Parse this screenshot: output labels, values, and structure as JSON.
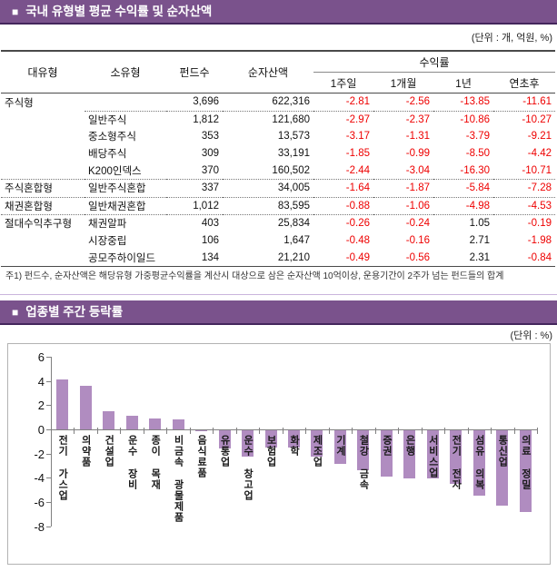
{
  "colors": {
    "header_bg": "#7a528c",
    "header_border": "#44265c",
    "bar_fill": "#b08cc0",
    "negative_red": "#ee0000",
    "divider_lavender": "#c9b4dd"
  },
  "section1": {
    "bullet": "■",
    "title": "국내 유형별 평균 수익률 및 순자산액",
    "unit": "(단위 : 개, 억원, %)",
    "footnote": "주1) 펀드수, 순자산액은 해당유형 가중평균수익률을 계산시 대상으로 삼은 순자산액 10억이상, 운용기간이 2주가 넘는 펀드들의 합계",
    "table": {
      "col_group": "대유형",
      "col_sub": "소유형",
      "col_funds": "펀드수",
      "col_assets": "순자산액",
      "col_returns": "수익률",
      "returns_cols": [
        "1주일",
        "1개월",
        "1년",
        "연초후"
      ],
      "rows": [
        {
          "group": "주식형",
          "sub": "",
          "funds": "3,696",
          "assets": "622,316",
          "r": [
            "-2.81",
            "-2.56",
            "-13.85",
            "-11.61"
          ],
          "sep": "partial"
        },
        {
          "group": "",
          "sub": "일반주식",
          "funds": "1,812",
          "assets": "121,680",
          "r": [
            "-2.97",
            "-2.37",
            "-10.86",
            "-10.27"
          ],
          "sep": "none"
        },
        {
          "group": "",
          "sub": "중소형주식",
          "funds": "353",
          "assets": "13,573",
          "r": [
            "-3.17",
            "-1.31",
            "-3.79",
            "-9.21"
          ],
          "sep": "none"
        },
        {
          "group": "",
          "sub": "배당주식",
          "funds": "309",
          "assets": "33,191",
          "r": [
            "-1.85",
            "-0.99",
            "-8.50",
            "-4.42"
          ],
          "sep": "none"
        },
        {
          "group": "",
          "sub": "K200인덱스",
          "funds": "370",
          "assets": "160,502",
          "r": [
            "-2.44",
            "-3.04",
            "-16.30",
            "-10.71"
          ],
          "sep": "full"
        },
        {
          "group": "주식혼합형",
          "sub": "일반주식혼합",
          "funds": "337",
          "assets": "34,005",
          "r": [
            "-1.64",
            "-1.87",
            "-5.84",
            "-7.28"
          ],
          "sep": "full"
        },
        {
          "group": "채권혼합형",
          "sub": "일반채권혼합",
          "funds": "1,012",
          "assets": "83,595",
          "r": [
            "-0.88",
            "-1.06",
            "-4.98",
            "-4.53"
          ],
          "sep": "full"
        },
        {
          "group": "절대수익추구형",
          "sub": "채권알파",
          "funds": "403",
          "assets": "25,834",
          "r": [
            "-0.26",
            "-0.24",
            "1.05",
            "-0.19"
          ],
          "sep": "none"
        },
        {
          "group": "",
          "sub": "시장중립",
          "funds": "106",
          "assets": "1,647",
          "r": [
            "-0.48",
            "-0.16",
            "2.71",
            "-1.98"
          ],
          "sep": "none"
        },
        {
          "group": "",
          "sub": "공모주하이일드",
          "funds": "134",
          "assets": "21,210",
          "r": [
            "-0.49",
            "-0.56",
            "2.31",
            "-0.84"
          ],
          "sep": "none"
        }
      ]
    }
  },
  "section2": {
    "bullet": "■",
    "title": "업종별 주간 등락률",
    "unit": "(단위 : %)"
  },
  "chart_data": {
    "type": "bar",
    "title": "업종별 주간 등락률",
    "xlabel": "",
    "ylabel": "",
    "unit": "%",
    "categories": [
      "전기 가스업",
      "의약품",
      "건설업",
      "운수 장비",
      "종이 목재",
      "비금속 광물제품",
      "음식료품",
      "유통업",
      "운수 창고업",
      "보험업",
      "화학",
      "제조업",
      "기계",
      "철강 금속",
      "증권",
      "은행",
      "서비스업",
      "전기 전자",
      "섬유 의복",
      "통신업",
      "의료 정밀"
    ],
    "values": [
      4.1,
      3.6,
      1.5,
      1.1,
      0.9,
      0.8,
      -0.1,
      -1.5,
      -2.2,
      -1.4,
      -1.4,
      -2.2,
      -2.8,
      -3.3,
      -3.8,
      -4.0,
      -4.0,
      -4.4,
      -5.4,
      -6.2,
      -6.7
    ],
    "ylim": [
      -8,
      6
    ],
    "yticks": [
      6,
      4,
      2,
      0,
      -2,
      -4,
      -6,
      -8
    ],
    "grid": false,
    "legend": false,
    "bar_color": "#b08cc0"
  }
}
